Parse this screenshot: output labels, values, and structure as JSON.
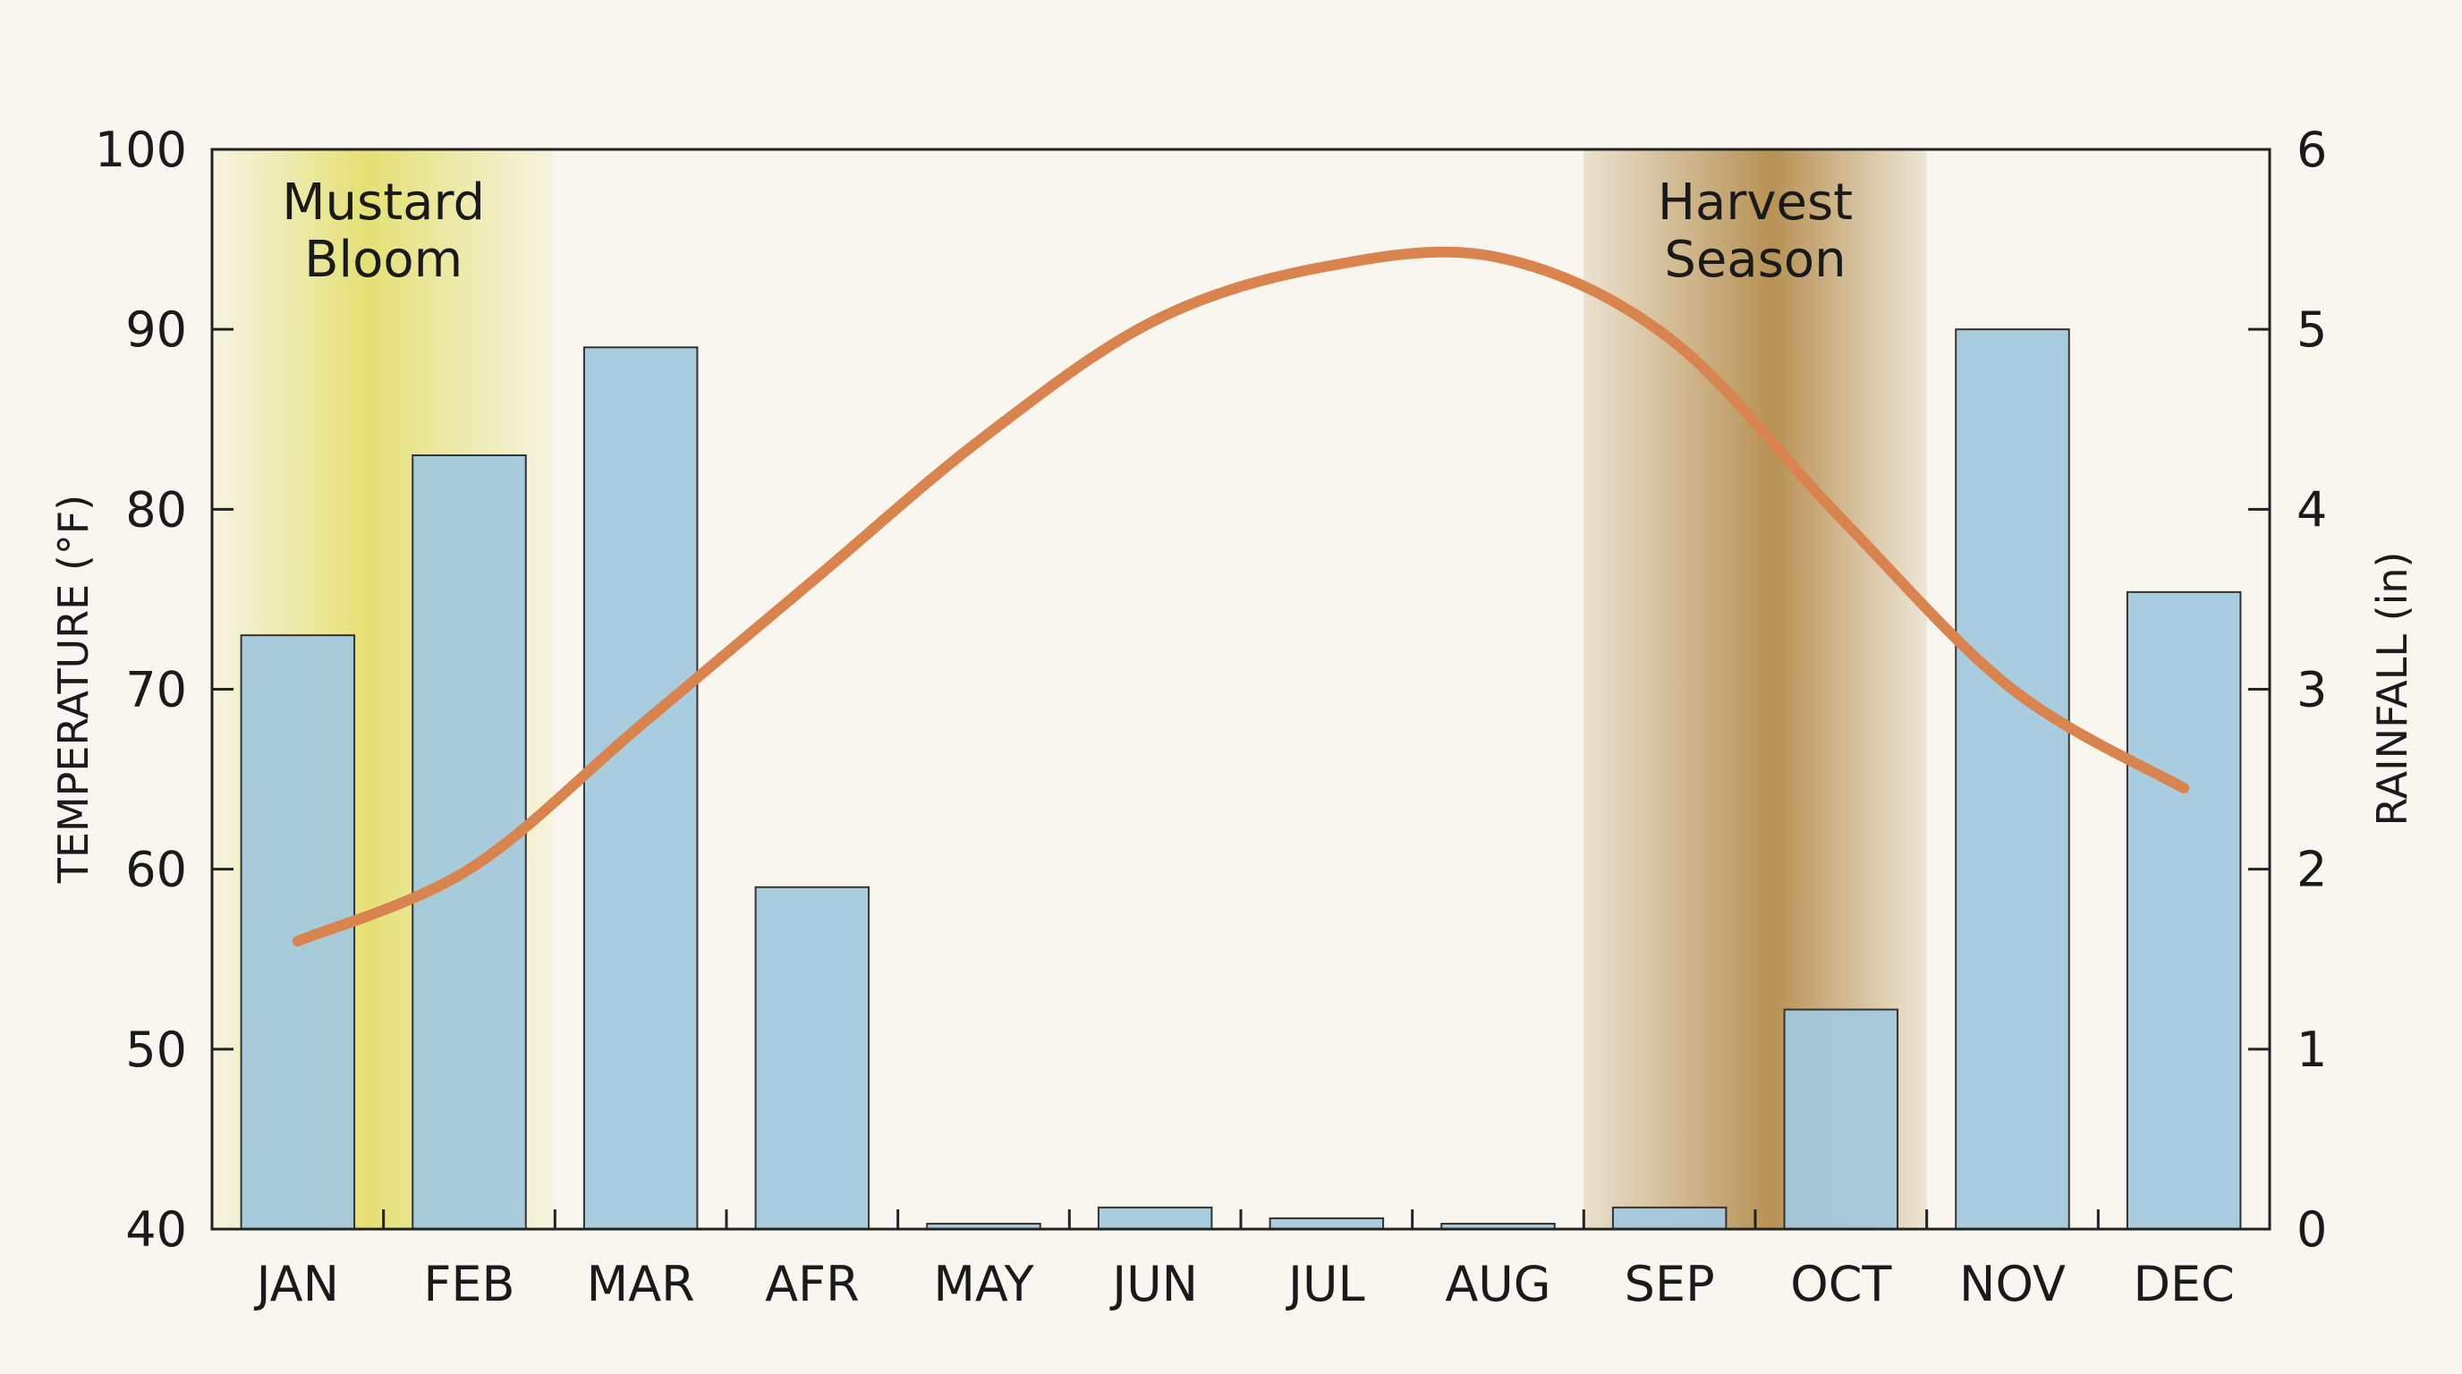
{
  "chart_data": {
    "type": "bar",
    "categories": [
      "JAN",
      "FEB",
      "MAR",
      "AFR",
      "MAY",
      "JUN",
      "JUL",
      "AUG",
      "SEP",
      "OCT",
      "NOV",
      "DEC"
    ],
    "series": [
      {
        "type": "bar",
        "axis": "right",
        "color": "#a3c8de",
        "values": [
          3.3,
          4.3,
          4.9,
          1.9,
          0.03,
          0.12,
          0.06,
          0.03,
          0.12,
          1.22,
          5.0,
          3.54
        ]
      },
      {
        "type": "line",
        "axis": "left",
        "color": "#d9844f",
        "values": [
          56,
          60,
          68,
          76,
          84,
          90.5,
          93.5,
          94,
          89.5,
          79.5,
          70,
          64.5
        ]
      }
    ],
    "ylabel": "TEMPERATURE (°F)",
    "ylabel_right": "RAINFALL (in)",
    "ylim": [
      40,
      100
    ],
    "ylim_right": [
      0,
      6
    ],
    "yticks": [
      40,
      50,
      60,
      70,
      80,
      90,
      100
    ],
    "yticks_right": [
      0,
      1,
      2,
      3,
      4,
      5,
      6
    ],
    "bands": [
      {
        "label_lines": [
          "Mustard",
          "Bloom"
        ],
        "from": "JAN",
        "to": "FEB",
        "color": "#e4df6e"
      },
      {
        "label_lines": [
          "Harvest",
          "Season"
        ],
        "from": "SEP",
        "to": "OCT",
        "color": "#b48c4c"
      }
    ],
    "grid": false
  }
}
